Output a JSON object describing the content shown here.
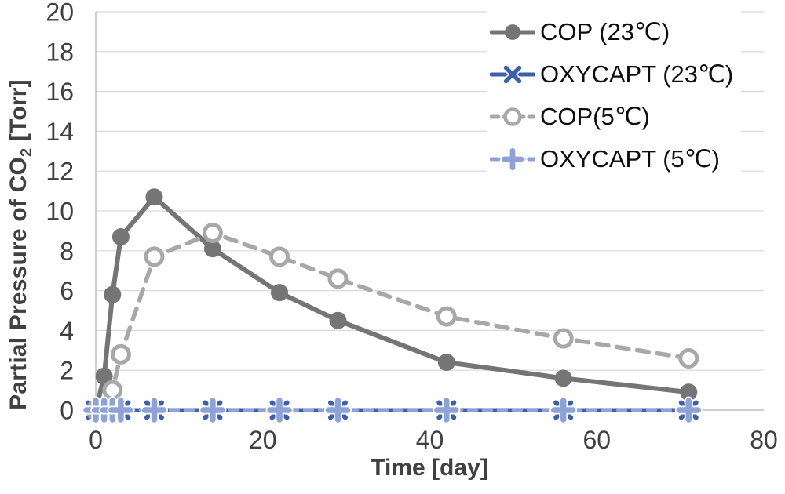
{
  "chart_data": {
    "type": "line",
    "title": "",
    "xlabel": "Time [day]",
    "ylabel_pre": "Partial Pressure of CO",
    "ylabel_sub": "2",
    "ylabel_post": " [Torr]",
    "xlim": [
      0,
      80
    ],
    "ylim": [
      0,
      20
    ],
    "xticks": [
      "0",
      "20",
      "40",
      "60",
      "80"
    ],
    "xtick_values": [
      0,
      20,
      40,
      60,
      80
    ],
    "yticks": [
      "0",
      "2",
      "4",
      "6",
      "8",
      "10",
      "12",
      "14",
      "16",
      "18",
      "20"
    ],
    "ytick_values": [
      0,
      2,
      4,
      6,
      8,
      10,
      12,
      14,
      16,
      18,
      20
    ],
    "grid": "horizontal gridlines every 2 Torr",
    "legend_position": "top-right",
    "series": [
      {
        "name": "COP (23℃)",
        "color": "#757575",
        "line": "solid",
        "marker": "circle-filled",
        "x": [
          0,
          1,
          2,
          3,
          7,
          14,
          22,
          29,
          42,
          56,
          71
        ],
        "y": [
          0,
          1.7,
          5.8,
          8.7,
          10.7,
          8.1,
          5.9,
          4.5,
          2.4,
          1.6,
          0.9
        ]
      },
      {
        "name": "OXYCAPT (23℃)",
        "color": "#3E60A8",
        "line": "solid",
        "marker": "x",
        "x": [
          0,
          1,
          2,
          3,
          7,
          14,
          22,
          29,
          42,
          56,
          71
        ],
        "y": [
          0,
          0,
          0,
          0,
          0,
          0,
          0,
          0,
          0,
          0,
          0
        ]
      },
      {
        "name": "COP(5℃)",
        "color": "#A8A8A8",
        "line": "dashed",
        "marker": "circle-open",
        "x": [
          0,
          1,
          2,
          3,
          7,
          14,
          22,
          29,
          42,
          56,
          71
        ],
        "y": [
          0,
          0.1,
          1.0,
          2.8,
          7.7,
          8.9,
          7.7,
          6.6,
          4.7,
          3.6,
          2.6
        ]
      },
      {
        "name": "OXYCAPT (5℃)",
        "color": "#8FA2D6",
        "line": "dashed",
        "marker": "plus",
        "x": [
          0,
          1,
          2,
          3,
          7,
          14,
          22,
          29,
          42,
          56,
          71
        ],
        "y": [
          0,
          0,
          0,
          0,
          0,
          0,
          0,
          0,
          0,
          0,
          0
        ]
      }
    ]
  },
  "style": {
    "grid_color": "#D9D9D9",
    "axis_color": "#BFBFBF",
    "tick_label_color": "#404040",
    "axis_title_color": "#404040",
    "legend_text_color": "#0D0D0D",
    "background": "#FFFFFF"
  }
}
